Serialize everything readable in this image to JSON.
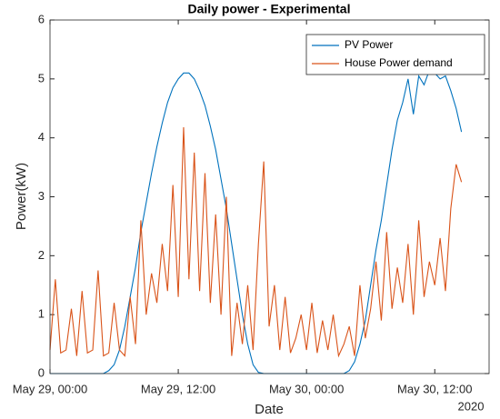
{
  "chart_data": {
    "type": "line",
    "title": "Daily power - Experimental",
    "xlabel": "Date",
    "ylabel": "Power(kW)",
    "x_year_label": "2020",
    "x": [
      "2020-05-29 00:00",
      "2020-05-29 00:30",
      "2020-05-29 01:00",
      "2020-05-29 01:30",
      "2020-05-29 02:00",
      "2020-05-29 02:30",
      "2020-05-29 03:00",
      "2020-05-29 03:30",
      "2020-05-29 04:00",
      "2020-05-29 04:30",
      "2020-05-29 05:00",
      "2020-05-29 05:30",
      "2020-05-29 06:00",
      "2020-05-29 06:30",
      "2020-05-29 07:00",
      "2020-05-29 07:30",
      "2020-05-29 08:00",
      "2020-05-29 08:30",
      "2020-05-29 09:00",
      "2020-05-29 09:30",
      "2020-05-29 10:00",
      "2020-05-29 10:30",
      "2020-05-29 11:00",
      "2020-05-29 11:30",
      "2020-05-29 12:00",
      "2020-05-29 12:30",
      "2020-05-29 13:00",
      "2020-05-29 13:30",
      "2020-05-29 14:00",
      "2020-05-29 14:30",
      "2020-05-29 15:00",
      "2020-05-29 15:30",
      "2020-05-29 16:00",
      "2020-05-29 16:30",
      "2020-05-29 17:00",
      "2020-05-29 17:30",
      "2020-05-29 18:00",
      "2020-05-29 18:30",
      "2020-05-29 19:00",
      "2020-05-29 19:30",
      "2020-05-29 20:00",
      "2020-05-29 20:30",
      "2020-05-29 21:00",
      "2020-05-29 21:30",
      "2020-05-29 22:00",
      "2020-05-29 22:30",
      "2020-05-29 23:00",
      "2020-05-29 23:30",
      "2020-05-30 00:00",
      "2020-05-30 00:30",
      "2020-05-30 01:00",
      "2020-05-30 01:30",
      "2020-05-30 02:00",
      "2020-05-30 02:30",
      "2020-05-30 03:00",
      "2020-05-30 03:30",
      "2020-05-30 04:00",
      "2020-05-30 04:30",
      "2020-05-30 05:00",
      "2020-05-30 05:30",
      "2020-05-30 06:00",
      "2020-05-30 06:30",
      "2020-05-30 07:00",
      "2020-05-30 07:30",
      "2020-05-30 08:00",
      "2020-05-30 08:30",
      "2020-05-30 09:00",
      "2020-05-30 09:30",
      "2020-05-30 10:00",
      "2020-05-30 10:30",
      "2020-05-30 11:00",
      "2020-05-30 11:30",
      "2020-05-30 12:00",
      "2020-05-30 12:30",
      "2020-05-30 13:00",
      "2020-05-30 13:30",
      "2020-05-30 14:00",
      "2020-05-30 14:30"
    ],
    "series": [
      {
        "name": "PV Power",
        "color": "#0072bd",
        "values": [
          0,
          0,
          0,
          0,
          0,
          0,
          0,
          0,
          0,
          0,
          0,
          0.05,
          0.15,
          0.4,
          0.8,
          1.3,
          1.8,
          2.4,
          2.9,
          3.4,
          3.85,
          4.25,
          4.6,
          4.85,
          5.0,
          5.1,
          5.1,
          5.0,
          4.8,
          4.55,
          4.2,
          3.8,
          3.3,
          2.8,
          2.2,
          1.6,
          1.0,
          0.5,
          0.15,
          0.02,
          0,
          0,
          0,
          0,
          0,
          0,
          0,
          0,
          0,
          0,
          0,
          0,
          0,
          0,
          0,
          0,
          0.05,
          0.2,
          0.5,
          0.9,
          1.5,
          2.1,
          2.6,
          3.2,
          3.8,
          4.3,
          4.6,
          5.0,
          4.4,
          5.05,
          4.9,
          5.15,
          5.1,
          5.0,
          5.05,
          4.8,
          4.5,
          4.1
        ]
      },
      {
        "name": "House Power demand",
        "color": "#d95319",
        "values": [
          0.4,
          1.6,
          0.35,
          0.4,
          1.1,
          0.3,
          1.4,
          0.35,
          0.4,
          1.75,
          0.3,
          0.35,
          1.2,
          0.4,
          0.3,
          1.3,
          0.5,
          2.6,
          1.0,
          1.7,
          1.2,
          2.2,
          1.4,
          3.2,
          1.3,
          4.18,
          1.6,
          3.75,
          1.4,
          3.4,
          1.2,
          2.7,
          1.0,
          3.0,
          0.3,
          1.2,
          0.5,
          1.5,
          0.4,
          2.2,
          3.6,
          0.8,
          1.5,
          0.4,
          1.3,
          0.35,
          0.6,
          1.0,
          0.4,
          1.2,
          0.35,
          0.9,
          0.4,
          1.0,
          0.3,
          0.5,
          0.8,
          0.3,
          1.5,
          0.6,
          1.1,
          1.9,
          0.9,
          2.4,
          1.1,
          1.8,
          1.2,
          2.2,
          1.0,
          2.6,
          1.3,
          1.9,
          1.5,
          2.3,
          1.4,
          2.8,
          3.55,
          3.25
        ]
      }
    ],
    "xlim": [
      "2020-05-29 00:00",
      "2020-05-30 17:05"
    ],
    "xticks": [
      {
        "value": "2020-05-29 00:00",
        "label": "May 29, 00:00"
      },
      {
        "value": "2020-05-29 12:00",
        "label": "May 29, 12:00"
      },
      {
        "value": "2020-05-30 00:00",
        "label": "May 30, 00:00"
      },
      {
        "value": "2020-05-30 12:00",
        "label": "May 30, 12:00"
      }
    ],
    "ylim": [
      0,
      6
    ],
    "yticks": [
      0,
      1,
      2,
      3,
      4,
      5,
      6
    ],
    "grid": false,
    "legend": "upper-right"
  }
}
